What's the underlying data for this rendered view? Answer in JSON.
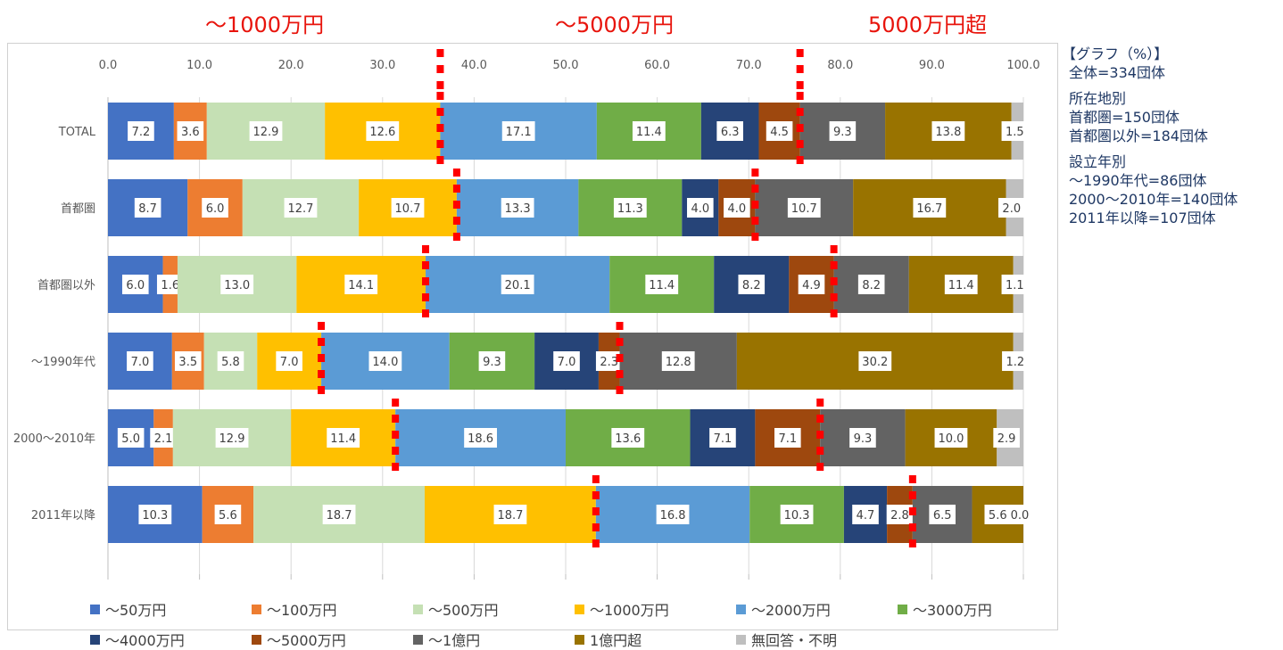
{
  "range_labels": [
    "～1000万円",
    "～5000万円",
    "5000万円超"
  ],
  "side_info": {
    "title": "【グラフ（%）】",
    "total": "全体=334団体",
    "location_heading": "所在地別",
    "location_capital": "首都圏=150団体",
    "location_other": "首都圏以外=184団体",
    "founded_heading": "設立年別",
    "founded_1990s": "～1990年代=86団体",
    "founded_2000s": "2000～2010年=140団体",
    "founded_2011": "2011年以降=107団体"
  },
  "chart_data": {
    "type": "bar",
    "orientation": "horizontal",
    "stacked": true,
    "xlim": [
      0,
      100
    ],
    "x_ticks": [
      "0.0",
      "10.0",
      "20.0",
      "30.0",
      "40.0",
      "50.0",
      "60.0",
      "70.0",
      "80.0",
      "90.0",
      "100.0"
    ],
    "grid": true,
    "legend_position": "bottom",
    "categories": [
      "TOTAL",
      "首都圏",
      "首都圏以外",
      "～1990年代",
      "2000～2010年",
      "2011年以降"
    ],
    "series": [
      {
        "name": "～50万円",
        "color": "#4472c4",
        "values": [
          7.2,
          8.7,
          6.0,
          7.0,
          5.0,
          10.3
        ]
      },
      {
        "name": "～100万円",
        "color": "#ed7d31",
        "values": [
          3.6,
          6.0,
          1.6,
          3.5,
          2.1,
          5.6
        ]
      },
      {
        "name": "～500万円",
        "color": "#c5e0b4",
        "values": [
          12.9,
          12.7,
          13.0,
          5.8,
          12.9,
          18.7
        ]
      },
      {
        "name": "～1000万円",
        "color": "#ffc000",
        "values": [
          12.6,
          10.7,
          14.1,
          7.0,
          11.4,
          18.7
        ]
      },
      {
        "name": "～2000万円",
        "color": "#5b9bd5",
        "values": [
          17.1,
          13.3,
          20.1,
          14.0,
          18.6,
          16.8
        ]
      },
      {
        "name": "～3000万円",
        "color": "#70ad47",
        "values": [
          11.4,
          11.3,
          11.4,
          9.3,
          13.6,
          10.3
        ]
      },
      {
        "name": "～4000万円",
        "color": "#264478",
        "values": [
          6.3,
          4.0,
          8.2,
          7.0,
          7.1,
          4.7
        ]
      },
      {
        "name": "～5000万円",
        "color": "#9e480e",
        "values": [
          4.5,
          4.0,
          4.9,
          2.3,
          7.1,
          2.8
        ]
      },
      {
        "name": "～1億円",
        "color": "#636363",
        "values": [
          9.3,
          10.7,
          8.2,
          12.8,
          9.3,
          6.5
        ]
      },
      {
        "name": "1億円超",
        "color": "#997300",
        "values": [
          13.8,
          16.7,
          11.4,
          30.2,
          10.0,
          5.6
        ]
      },
      {
        "name": "無回答・不明",
        "color": "#bfbfbf",
        "values": [
          1.5,
          2.0,
          1.1,
          1.2,
          2.9,
          0.0
        ]
      }
    ],
    "threshold_color": "#ff0000",
    "range_label_color": "#e8140c"
  }
}
